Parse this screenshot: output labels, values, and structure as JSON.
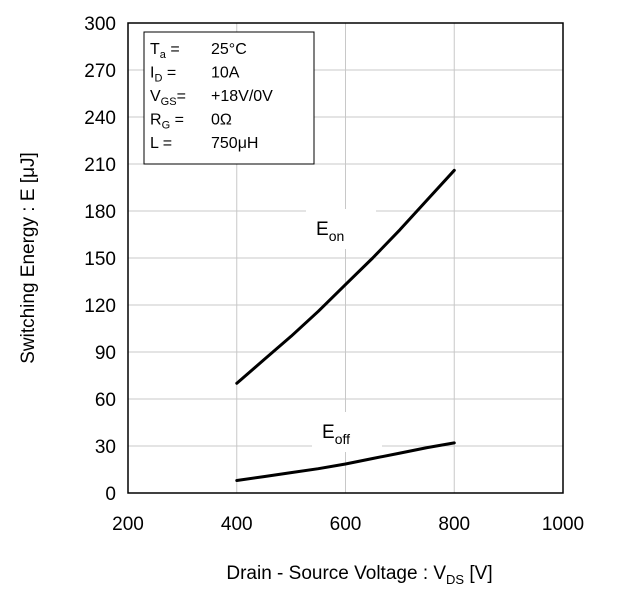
{
  "chart_data": {
    "type": "line",
    "xlim": [
      200,
      1000
    ],
    "ylim": [
      0,
      300
    ],
    "x_ticks": [
      "200",
      "400",
      "600",
      "800",
      "1000"
    ],
    "y_ticks": [
      "0",
      "30",
      "60",
      "90",
      "120",
      "150",
      "180",
      "210",
      "240",
      "270",
      "300"
    ],
    "xlabel": {
      "main": "Drain - Source Voltage : V",
      "sub": "DS",
      "unit": " [V]"
    },
    "ylabel": "Switching Energy : E [μJ]",
    "grid": true,
    "conditions": [
      {
        "sym": "T",
        "sub": "a",
        "eq": " =",
        "value": "25°C"
      },
      {
        "sym": "I",
        "sub": "D",
        "eq": " =",
        "value": "10A"
      },
      {
        "sym": "V",
        "sub": "GS",
        "eq": "=",
        "value": "+18V/0V"
      },
      {
        "sym": "R",
        "sub": "G",
        "eq": " =",
        "value": "0Ω"
      },
      {
        "sym": "L",
        "sub": "",
        "eq": " =",
        "value": "750μH"
      }
    ],
    "series": [
      {
        "name": "E",
        "sub": "on",
        "points": [
          [
            400,
            70
          ],
          [
            450,
            85
          ],
          [
            500,
            100
          ],
          [
            550,
            116
          ],
          [
            600,
            133
          ],
          [
            650,
            150
          ],
          [
            700,
            168
          ],
          [
            750,
            187
          ],
          [
            800,
            206
          ]
        ]
      },
      {
        "name": "E",
        "sub": "off",
        "points": [
          [
            400,
            8
          ],
          [
            450,
            10.5
          ],
          [
            500,
            13
          ],
          [
            550,
            15.5
          ],
          [
            600,
            18.5
          ],
          [
            650,
            22
          ],
          [
            700,
            25.5
          ],
          [
            750,
            29
          ],
          [
            800,
            32
          ]
        ]
      }
    ]
  }
}
